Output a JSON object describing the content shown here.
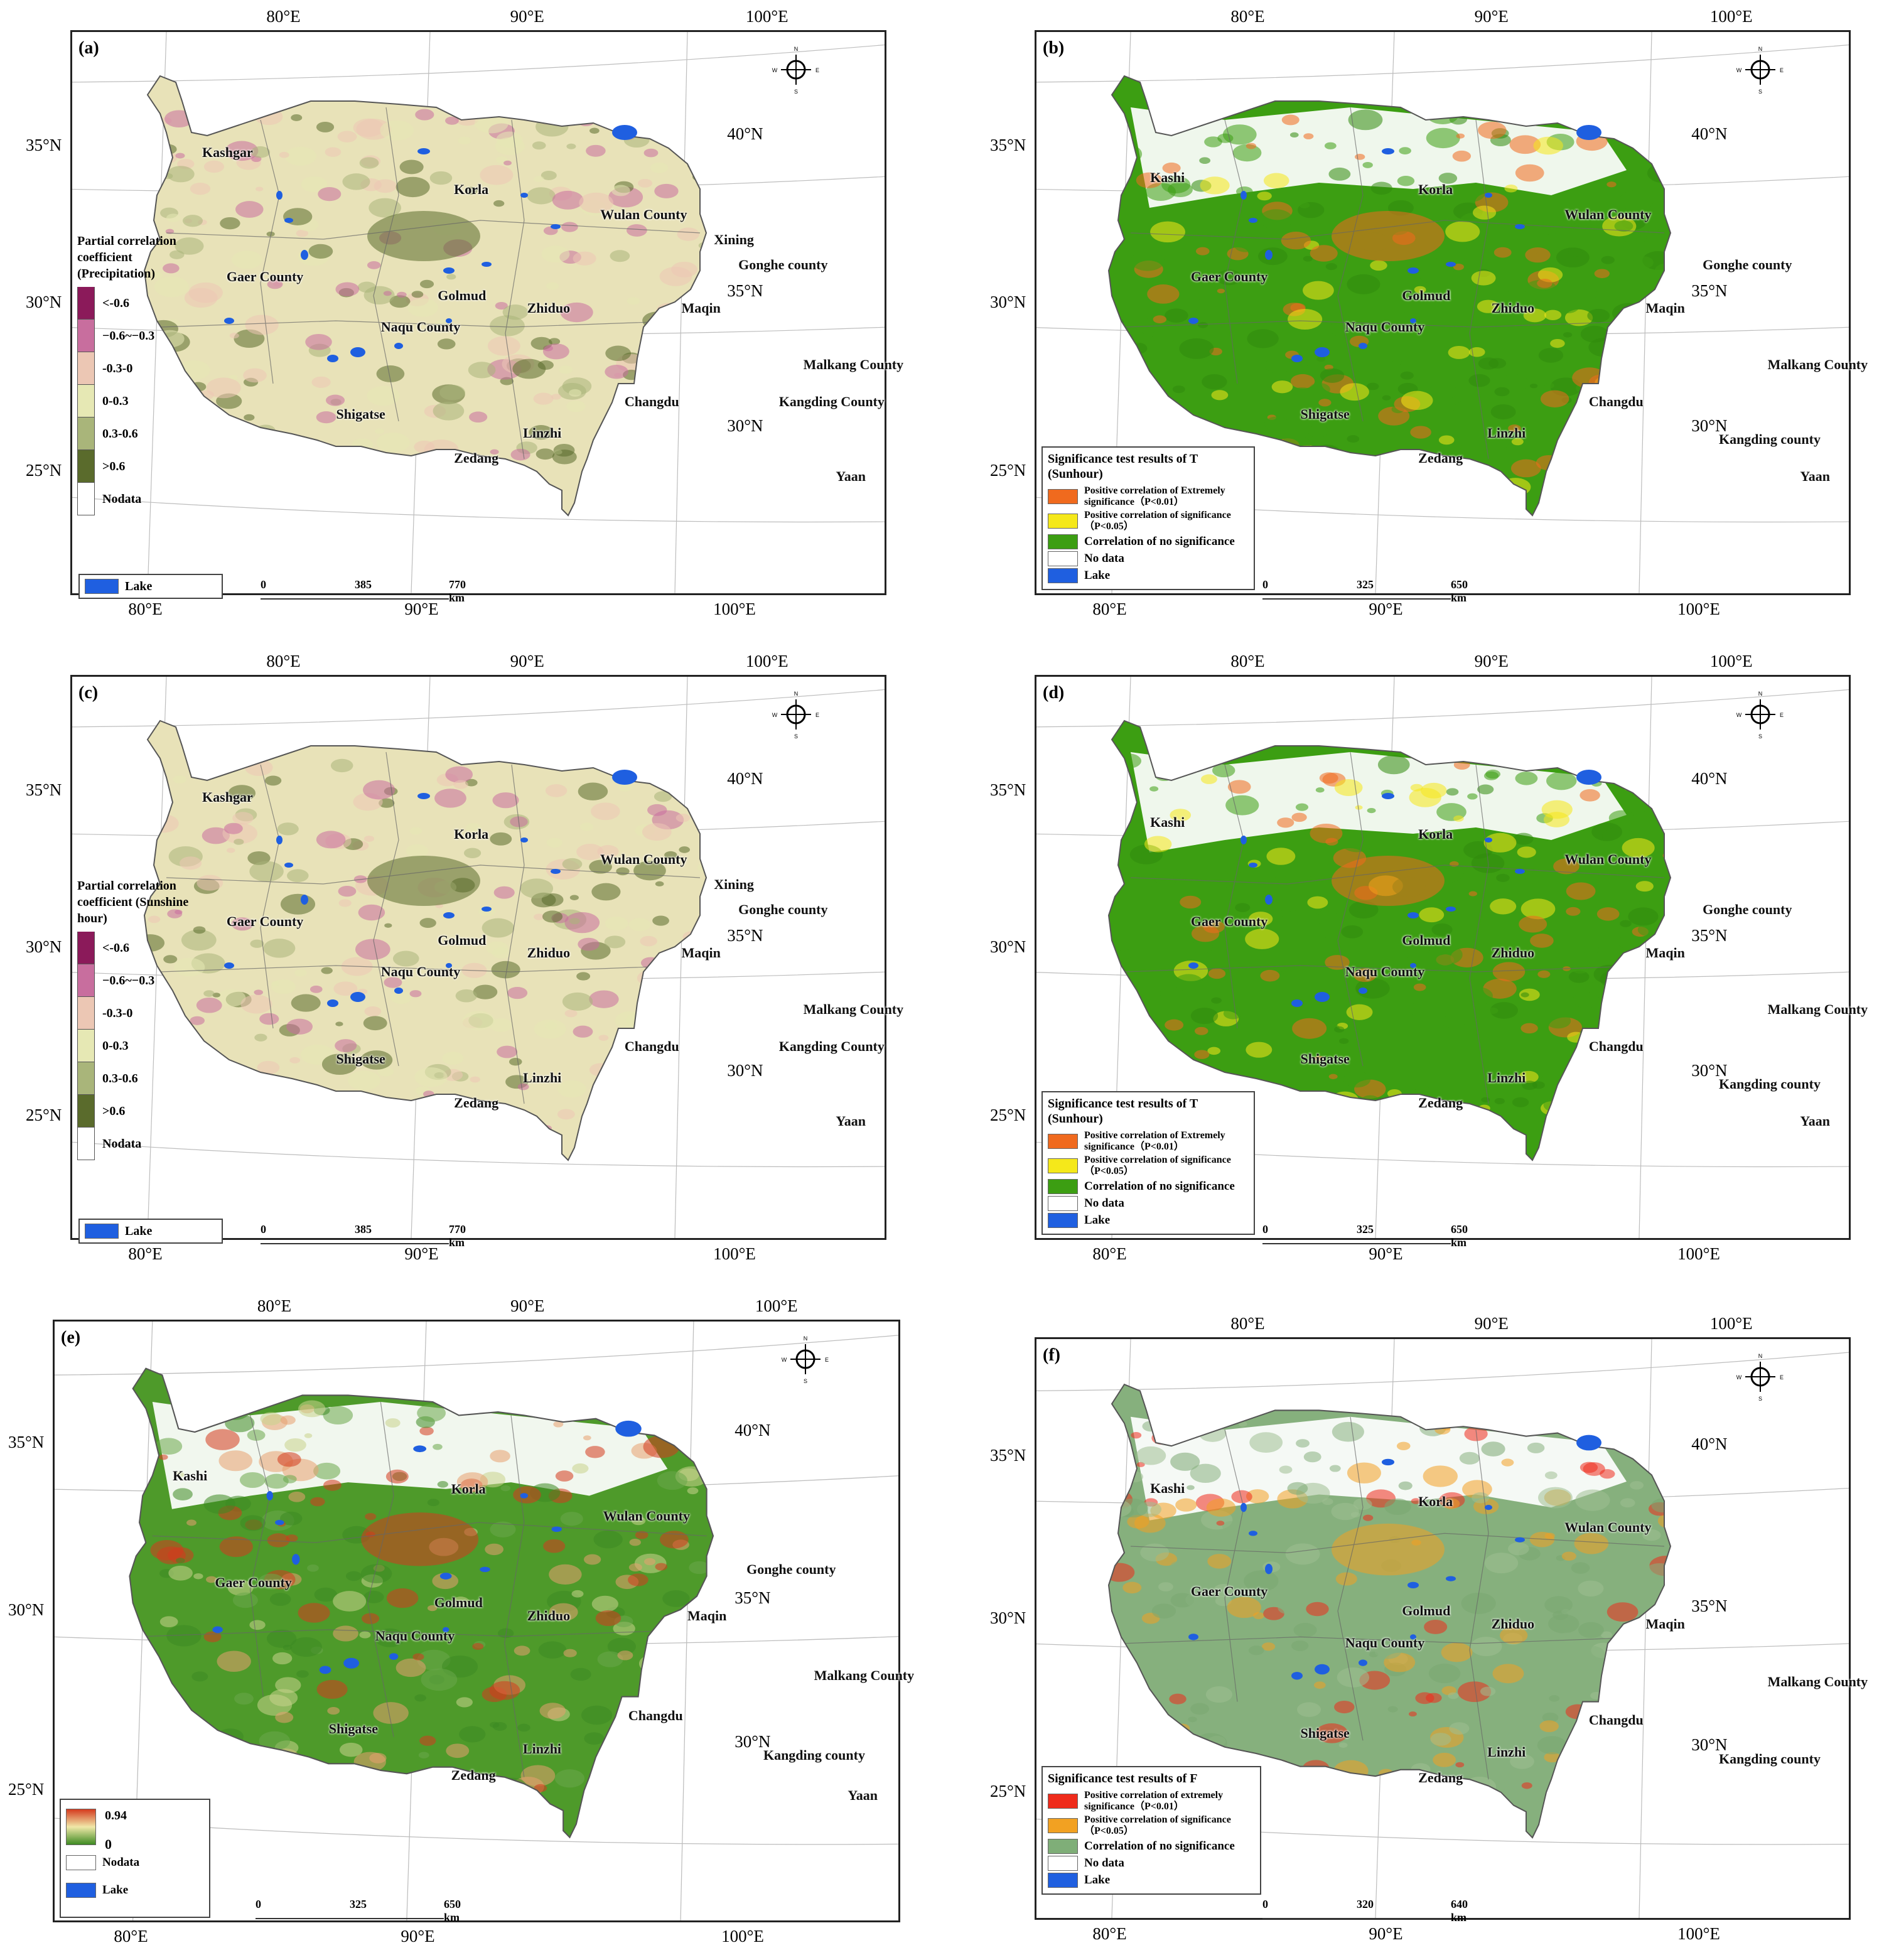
{
  "panels": {
    "a": {
      "label": "(a)",
      "lon_top": [
        "80°E",
        "90°E",
        "100°E"
      ],
      "lon_bottom": [
        "80°E",
        "90°E",
        "100°E"
      ],
      "lat_left": [
        "35°N",
        "30°N",
        "25°N"
      ],
      "lat_right": [
        "40°N",
        "35°N",
        "30°N"
      ],
      "places": [
        "Kashgar",
        "Korla",
        "Wulan County",
        "Xining",
        "Gonghe county",
        "Gaer County",
        "Golmud",
        "Naqu County",
        "Zhiduo",
        "Maqin",
        "Malkang County",
        "Changdu",
        "Kangding County",
        "Shigatse",
        "Linzhi",
        "Zedang",
        "Yaan"
      ],
      "legend_title": "Partial correlation coefficient (Precipitation)",
      "legend_classes": [
        "<-0.6",
        "−0.6~−0.3",
        "-0.3-0",
        "0-0.3",
        "0.3-0.6",
        ">0.6",
        "Nodata"
      ],
      "lake_label": "Lake",
      "scale_ticks": [
        "0",
        "385",
        "770 km"
      ]
    },
    "b": {
      "label": "(b)",
      "lon_top": [
        "80°E",
        "90°E",
        "100°E"
      ],
      "lon_bottom": [
        "80°E",
        "90°E",
        "100°E"
      ],
      "lat_left": [
        "35°N",
        "30°N",
        "25°N"
      ],
      "lat_right": [
        "40°N",
        "35°N",
        "30°N"
      ],
      "places": [
        "Kashi",
        "Korla",
        "Wulan County",
        "Gonghe county",
        "Gaer County",
        "Golmud",
        "Zhiduo",
        "Maqin",
        "Naqu County",
        "Malkang County",
        "Changdu",
        "Kangding county",
        "Shigatse",
        "Linzhi",
        "Zedang",
        "Yaan"
      ],
      "legend_title": "Significance test results of T (Sunhour)",
      "legend_items": [
        "Positive correlation of Extremely significance（P<0.01）",
        "Positive correlation of  significance（P<0.05）",
        "Correlation of  no significance",
        "No data",
        "Lake"
      ],
      "scale_ticks": [
        "0",
        "325",
        "650 km"
      ]
    },
    "c": {
      "label": "(c)",
      "lon_top": [
        "80°E",
        "90°E",
        "100°E"
      ],
      "lon_bottom": [
        "80°E",
        "90°E",
        "100°E"
      ],
      "lat_left": [
        "35°N",
        "30°N",
        "25°N"
      ],
      "lat_right": [
        "40°N",
        "35°N",
        "30°N"
      ],
      "places": [
        "Kashgar",
        "Korla",
        "Wulan County",
        "Xining",
        "Gonghe county",
        "Gaer County",
        "Golmud",
        "Naqu County",
        "Zhiduo",
        "Maqin",
        "Malkang County",
        "Changdu",
        "Kangding County",
        "Shigatse",
        "Linzhi",
        "Zedang",
        "Yaan"
      ],
      "legend_title": "Partial correlation coefficient (Sunshine hour)",
      "legend_classes": [
        "<-0.6",
        "−0.6~−0.3",
        "-0.3-0",
        "0-0.3",
        "0.3-0.6",
        ">0.6",
        "Nodata"
      ],
      "lake_label": "Lake",
      "scale_ticks": [
        "0",
        "385",
        "770 km"
      ]
    },
    "d": {
      "label": "(d)",
      "lon_top": [
        "80°E",
        "90°E",
        "100°E"
      ],
      "lon_bottom": [
        "80°E",
        "90°E",
        "100°E"
      ],
      "lat_left": [
        "35°N",
        "30°N",
        "25°N"
      ],
      "lat_right": [
        "40°N",
        "35°N",
        "30°N"
      ],
      "places": [
        "Kashi",
        "Korla",
        "Wulan County",
        "Gonghe county",
        "Gaer County",
        "Golmud",
        "Zhiduo",
        "Maqin",
        "Naqu County",
        "Malkang County",
        "Changdu",
        "Kangding county",
        "Shigatse",
        "Linzhi",
        "Zedang",
        "Yaan"
      ],
      "legend_title": "Significance test results of T (Sunhour)",
      "legend_items": [
        "Positive correlation of Extremely significance（P<0.01）",
        "Positive correlation of  significance（P<0.05）",
        "Correlation of  no significance",
        "No data",
        "Lake"
      ],
      "scale_ticks": [
        "0",
        "325",
        "650 km"
      ]
    },
    "e": {
      "label": "(e)",
      "lon_top": [
        "80°E",
        "90°E",
        "100°E"
      ],
      "lon_bottom": [
        "80°E",
        "90°E",
        "100°E"
      ],
      "lat_left": [
        "35°N",
        "30°N",
        "25°N"
      ],
      "lat_right": [
        "40°N",
        "35°N",
        "30°N"
      ],
      "places": [
        "Kashi",
        "Korla",
        "Wulan County",
        "Gonghe county",
        "Gaer County",
        "Golmud",
        "Zhiduo",
        "Naqu County",
        "Maqin",
        "Malkang County",
        "Changdu",
        "Kangding county",
        "Shigatse",
        "Linzhi",
        "Zedang",
        "Yaan"
      ],
      "legend_max": "0.94",
      "legend_min": "0",
      "legend_nodata": "Nodata",
      "lake_label": "Lake",
      "scale_ticks": [
        "0",
        "325",
        "650 km"
      ]
    },
    "f": {
      "label": "(f)",
      "lon_top": [
        "80°E",
        "90°E",
        "100°E"
      ],
      "lon_bottom": [
        "80°E",
        "90°E",
        "100°E"
      ],
      "lat_left": [
        "35°N",
        "30°N",
        "25°N"
      ],
      "lat_right": [
        "40°N",
        "35°N",
        "30°N"
      ],
      "places": [
        "Kashi",
        "Korla",
        "Wulan County",
        "Gaer County",
        "Golmud",
        "Zhiduo",
        "Maqin",
        "Naqu County",
        "Malkang County",
        "Changdu",
        "Kangding county",
        "Shigatse",
        "Linzhi",
        "Zedang"
      ],
      "legend_title": "Significance test results of F",
      "legend_items": [
        "Positive correlation of extremely significance（P<0.01）",
        "Positive correlation of significance（P<0.05）",
        "Correlation of  no significance",
        "No data",
        "Lake"
      ],
      "scale_ticks": [
        "0",
        "320",
        "640 km"
      ]
    }
  },
  "compass_letters": {
    "n": "N",
    "s": "S",
    "e": "E",
    "w": "W"
  },
  "colors": {
    "lake": "#1f5fe0",
    "pc_classes": [
      "#8b1a5a",
      "#c86e9e",
      "#ecc7b4",
      "#e6e8b4",
      "#a9b57a",
      "#5a6b2c",
      "#ffffff"
    ],
    "sig_T": [
      "#f06a1e",
      "#f5e81a",
      "#3c9e12",
      "#ffffff",
      "#1f5fe0"
    ],
    "sig_F": [
      "#ef2b1b",
      "#f2a122",
      "#7fae78",
      "#ffffff",
      "#1f5fe0"
    ],
    "ramp_e": [
      "#d43a1e",
      "#f0e8a8",
      "#3d8a22"
    ],
    "map_base_pc": "#e8e2b8",
    "map_base_T": "#3c9e12",
    "map_base_e": "#4e9a2a",
    "map_base_F": "#86b07d"
  }
}
